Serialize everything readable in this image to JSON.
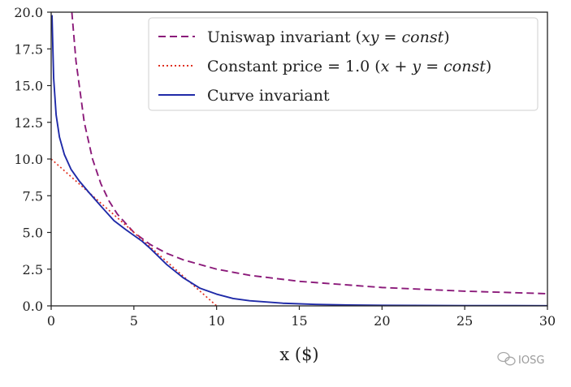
{
  "chart_data": {
    "type": "line",
    "title": "",
    "xlabel": "x ($)",
    "ylabel": "",
    "xlim": [
      0,
      30
    ],
    "ylim": [
      0,
      20
    ],
    "x_ticks": [
      "0",
      "5",
      "10",
      "15",
      "20",
      "25",
      "30"
    ],
    "y_ticks": [
      "0.0",
      "2.5",
      "5.0",
      "7.5",
      "10.0",
      "12.5",
      "15.0",
      "17.5",
      "20.0"
    ],
    "grid": false,
    "legend_position": "top-right",
    "series": [
      {
        "name": "Uniswap invariant (xy = const)",
        "legend_plain": "Uniswap invariant (",
        "legend_math": "xy = const",
        "legend_tail": ")",
        "style": "dashed",
        "color": "#8B1A7A",
        "x": [
          1.25,
          1.5,
          2,
          2.5,
          3,
          3.5,
          4,
          5,
          6,
          7,
          8,
          10,
          12,
          15,
          20,
          25,
          30
        ],
        "y": [
          20.0,
          16.67,
          12.5,
          10.0,
          8.33,
          7.14,
          6.25,
          5.0,
          4.17,
          3.57,
          3.13,
          2.5,
          2.08,
          1.67,
          1.25,
          1.0,
          0.83
        ]
      },
      {
        "name": "Constant price = 1.0 (x + y = const)",
        "legend_plain": "Constant price = 1.0 (",
        "legend_math": "x + y = const",
        "legend_tail": ")",
        "style": "dotted",
        "color": "#E03020",
        "x": [
          0,
          10
        ],
        "y": [
          10.0,
          0.0
        ]
      },
      {
        "name": "Curve invariant",
        "legend_plain": "Curve invariant",
        "legend_math": "",
        "legend_tail": "",
        "style": "solid",
        "color": "#1F2AA8",
        "x": [
          0.05,
          0.15,
          0.3,
          0.5,
          0.8,
          1.2,
          1.7,
          2.3,
          3,
          3.8,
          4.5,
          5,
          5.5,
          6,
          7,
          8,
          9,
          10,
          11,
          12,
          14,
          16,
          18,
          20,
          25,
          30
        ],
        "y": [
          19.8,
          15.5,
          13.0,
          11.5,
          10.3,
          9.3,
          8.5,
          7.7,
          6.8,
          5.8,
          5.2,
          4.8,
          4.4,
          3.9,
          2.8,
          1.9,
          1.2,
          0.8,
          0.5,
          0.35,
          0.18,
          0.1,
          0.06,
          0.04,
          0.02,
          0.01
        ]
      }
    ]
  },
  "watermark": {
    "icon": "wechat-icon",
    "text": "IOSG"
  }
}
